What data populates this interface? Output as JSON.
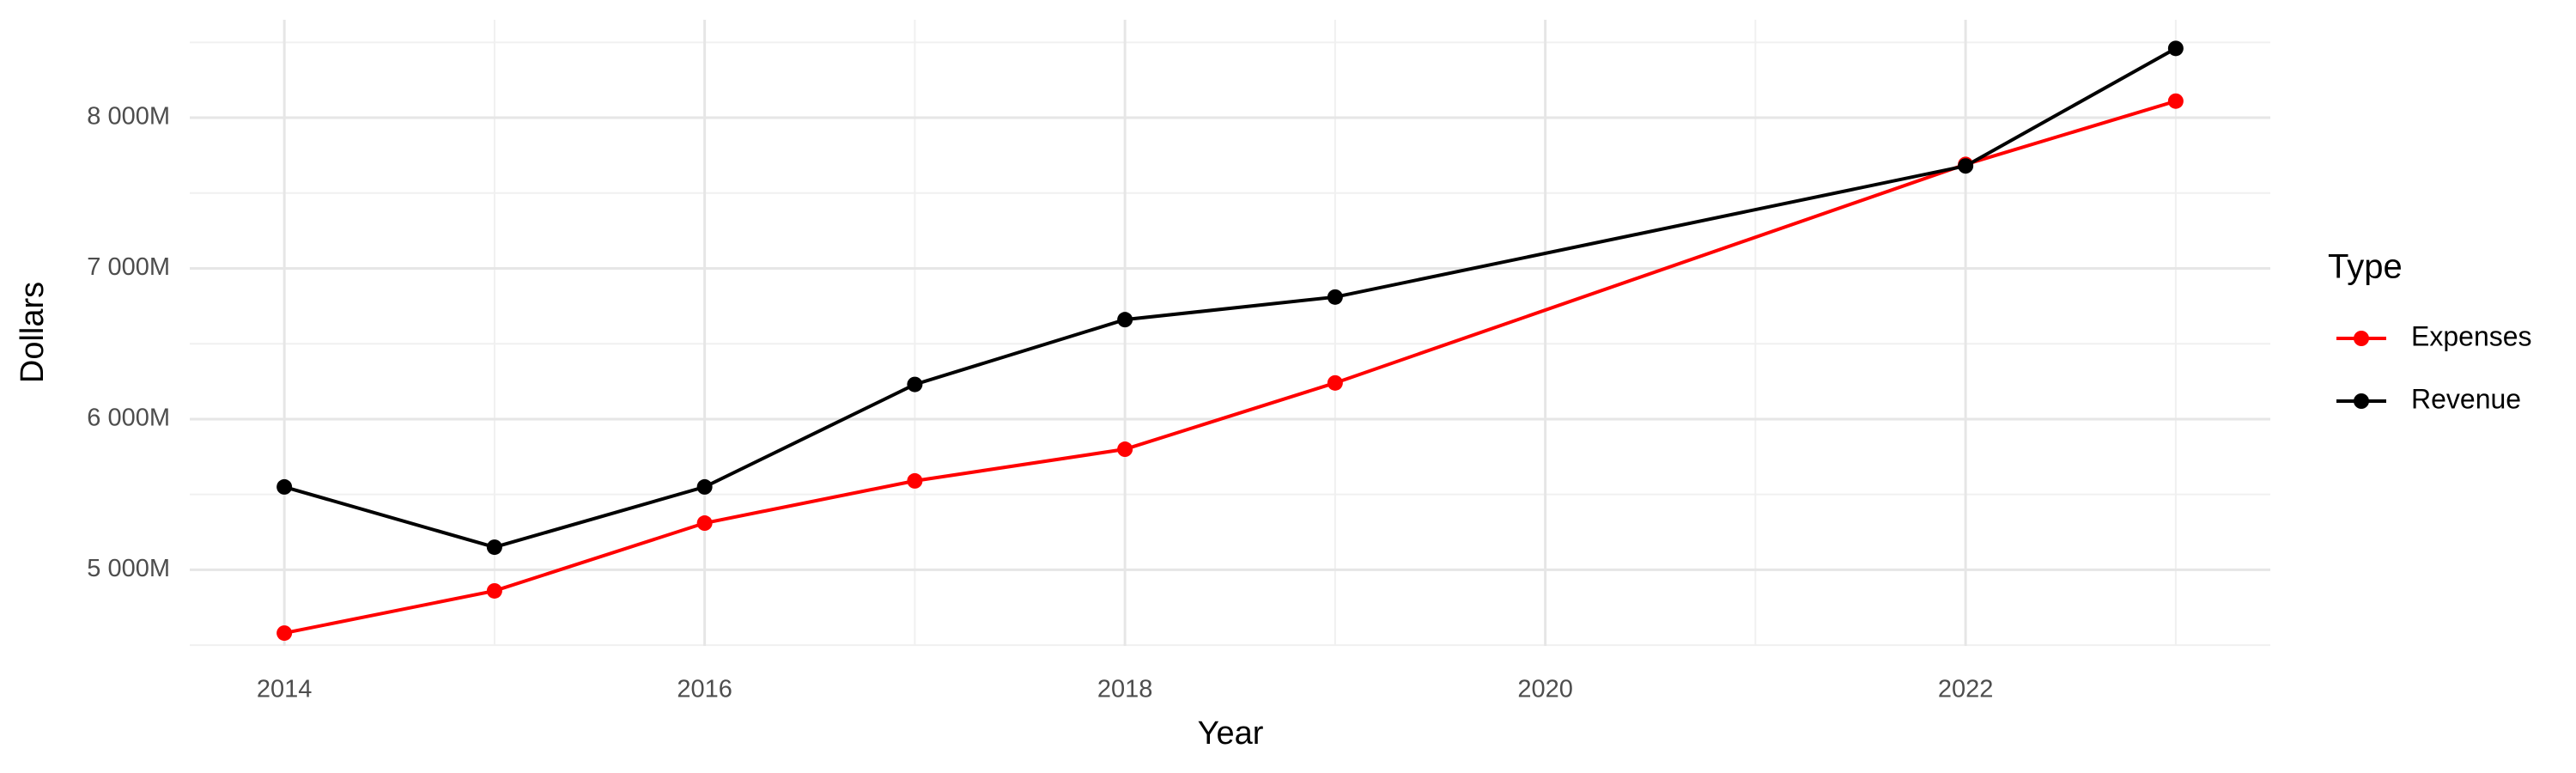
{
  "chart_data": {
    "type": "line",
    "x_label": "Year",
    "y_label": "Dollars",
    "x": [
      2014,
      2015,
      2016,
      2017,
      2018,
      2019,
      2022,
      2023
    ],
    "series": [
      {
        "name": "Expenses",
        "color": "#ff0000",
        "values": [
          4580,
          4860,
          5310,
          5590,
          5800,
          6240,
          7690,
          8110
        ]
      },
      {
        "name": "Revenue",
        "color": "#000000",
        "values": [
          5550,
          5150,
          5550,
          6230,
          6660,
          6810,
          7680,
          8460
        ]
      }
    ],
    "xlim": [
      2013.55,
      2023.45
    ],
    "xticks": [
      2014,
      2016,
      2018,
      2020,
      2022
    ],
    "ylim": [
      4495,
      8650
    ],
    "yticks": [
      {
        "value": 5000,
        "label": "5 000M"
      },
      {
        "value": 6000,
        "label": "6 000M"
      },
      {
        "value": 7000,
        "label": "7 000M"
      },
      {
        "value": 8000,
        "label": "8 000M"
      }
    ],
    "grid": true,
    "legend_title": "Type",
    "legend_position": "right"
  }
}
